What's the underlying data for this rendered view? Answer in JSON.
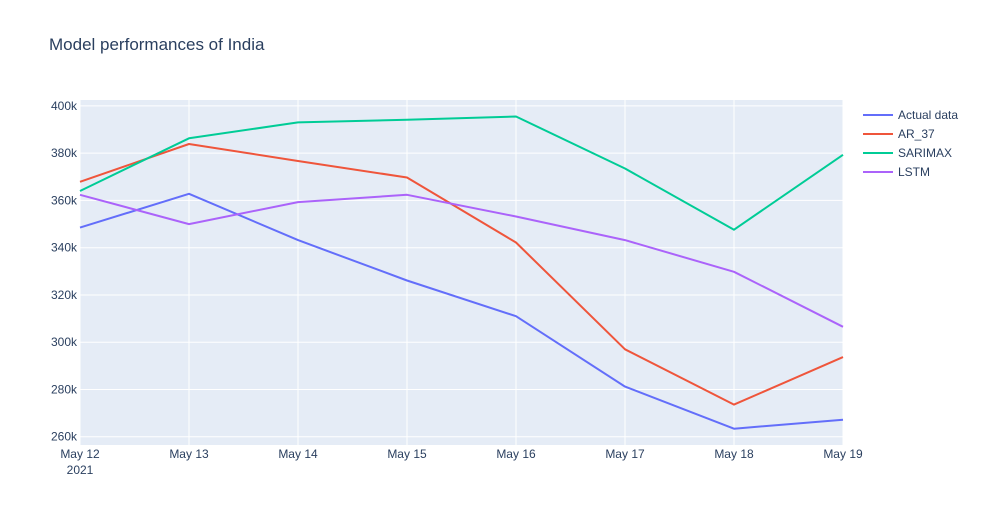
{
  "chart_data": {
    "type": "line",
    "title": "Model performances of India",
    "x": [
      "May 12",
      "May 13",
      "May 14",
      "May 15",
      "May 16",
      "May 17",
      "May 18",
      "May 19"
    ],
    "x_year_label": "2021",
    "y_ticks": [
      260000,
      280000,
      300000,
      320000,
      340000,
      360000,
      380000,
      400000
    ],
    "y_tick_labels": [
      "260k",
      "280k",
      "300k",
      "320k",
      "340k",
      "360k",
      "380k",
      "400k"
    ],
    "ylim": [
      256500,
      402500
    ],
    "grid": true,
    "legend_position": "top-right",
    "series": [
      {
        "name": "Actual data",
        "color": "#636efa",
        "values": [
          348500,
          362800,
          343200,
          326100,
          311000,
          281200,
          263400,
          267200
        ]
      },
      {
        "name": "AR_37",
        "color": "#ef553b",
        "values": [
          367900,
          383900,
          376700,
          369700,
          342200,
          297000,
          273600,
          293700
        ]
      },
      {
        "name": "SARIMAX",
        "color": "#00cc96",
        "values": [
          364000,
          386300,
          393000,
          394100,
          395500,
          373500,
          347600,
          379300
        ]
      },
      {
        "name": "LSTM",
        "color": "#ab63fa",
        "values": [
          362400,
          350000,
          359300,
          362400,
          353200,
          343200,
          329800,
          306500
        ]
      }
    ]
  }
}
